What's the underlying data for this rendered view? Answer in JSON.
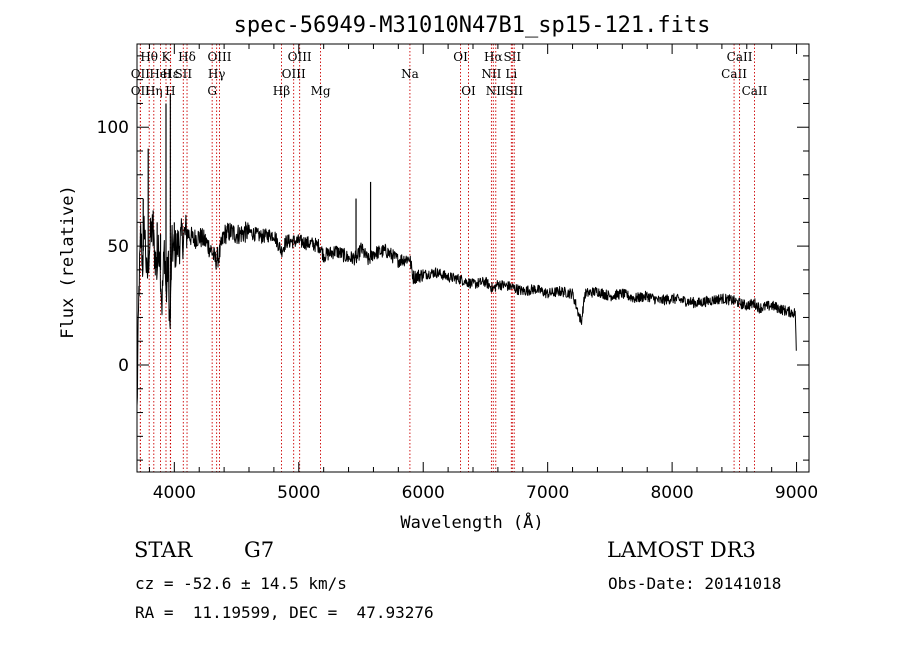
{
  "chart_data": {
    "type": "line",
    "title": "spec-56949-M31010N47B1_sp15-121.fits",
    "xlabel": "Wavelength (Å)",
    "ylabel": "Flux (relative)",
    "xlim": [
      3700,
      9100
    ],
    "ylim": [
      -45,
      135
    ],
    "xticks": [
      {
        "value": 4000,
        "label": "4000"
      },
      {
        "value": 5000,
        "label": "5000"
      },
      {
        "value": 6000,
        "label": "6000"
      },
      {
        "value": 7000,
        "label": "7000"
      },
      {
        "value": 8000,
        "label": "8000"
      },
      {
        "value": 9000,
        "label": "9000"
      }
    ],
    "yticks": [
      {
        "value": 0,
        "label": "0"
      },
      {
        "value": 50,
        "label": "50"
      },
      {
        "value": 100,
        "label": "100"
      }
    ],
    "series": [
      {
        "name": "flux",
        "x": [
          3700,
          3715,
          3730,
          3745,
          3760,
          3780,
          3800,
          3820,
          3840,
          3860,
          3880,
          3900,
          3920,
          3935,
          3950,
          3965,
          3980,
          4000,
          4050,
          4100,
          4150,
          4200,
          4250,
          4300,
          4330,
          4360,
          4400,
          4450,
          4500,
          4600,
          4700,
          4800,
          4860,
          4900,
          5000,
          5100,
          5170,
          5200,
          5300,
          5400,
          5470,
          5500,
          5560,
          5600,
          5700,
          5800,
          5890,
          5920,
          6000,
          6100,
          6200,
          6300,
          6400,
          6500,
          6563,
          6600,
          6700,
          6800,
          6900,
          7000,
          7100,
          7200,
          7270,
          7300,
          7400,
          7500,
          7600,
          7700,
          7800,
          7900,
          8000,
          8100,
          8200,
          8300,
          8400,
          8498,
          8542,
          8600,
          8662,
          8700,
          8800,
          8900,
          8970,
          8990,
          9000
        ],
        "y": [
          -20,
          30,
          55,
          42,
          60,
          35,
          50,
          58,
          48,
          40,
          52,
          25,
          50,
          28,
          45,
          12,
          50,
          48,
          52,
          56,
          53,
          54,
          52,
          48,
          44,
          46,
          55,
          56,
          55,
          56,
          54,
          55,
          48,
          52,
          52,
          51,
          50,
          46,
          48,
          45,
          45,
          49,
          44,
          47,
          48,
          44,
          45,
          37,
          38,
          39,
          37,
          36,
          34,
          35,
          32,
          34,
          33,
          31,
          32,
          30,
          31,
          30,
          18,
          30,
          31,
          29,
          30,
          28,
          29,
          27,
          28,
          27,
          26,
          27,
          28,
          27,
          26,
          25,
          26,
          24,
          25,
          23,
          22,
          22,
          2
        ]
      }
    ],
    "spikes": [
      {
        "x": 3750,
        "y": 70
      },
      {
        "x": 3790,
        "y": 91
      },
      {
        "x": 3830,
        "y": 65
      },
      {
        "x": 3862,
        "y": 60
      },
      {
        "x": 3889,
        "y": 55
      },
      {
        "x": 3933,
        "y": 110
      },
      {
        "x": 3968,
        "y": 114
      },
      {
        "x": 4000,
        "y": 60
      },
      {
        "x": 5460,
        "y": 70
      },
      {
        "x": 5577,
        "y": 77
      }
    ],
    "line_markers": [
      {
        "x": 3727,
        "label": "OII",
        "row": 2
      },
      {
        "x": 3727,
        "label": "OII",
        "row": 3
      },
      {
        "x": 3798,
        "label": "Hθ",
        "row": 1
      },
      {
        "x": 3835,
        "label": "Hη",
        "row": 3
      },
      {
        "x": 3889,
        "label": "HeI",
        "row": 2
      },
      {
        "x": 3933,
        "label": "K",
        "row": 1
      },
      {
        "x": 3968,
        "label": "H",
        "row": 3
      },
      {
        "x": 3970,
        "label": "Hε",
        "row": 2
      },
      {
        "x": 4072,
        "label": "SII",
        "row": 2
      },
      {
        "x": 4102,
        "label": "Hδ",
        "row": 1
      },
      {
        "x": 4304,
        "label": "G",
        "row": 3
      },
      {
        "x": 4340,
        "label": "Hγ",
        "row": 2
      },
      {
        "x": 4363,
        "label": "OIII",
        "row": 1
      },
      {
        "x": 4861,
        "label": "Hβ",
        "row": 3
      },
      {
        "x": 4959,
        "label": "OIII",
        "row": 2
      },
      {
        "x": 5007,
        "label": "OIII",
        "row": 1
      },
      {
        "x": 5175,
        "label": "Mg",
        "row": 3
      },
      {
        "x": 5893,
        "label": "Na",
        "row": 2
      },
      {
        "x": 6300,
        "label": "OI",
        "row": 1
      },
      {
        "x": 6364,
        "label": "OI",
        "row": 3
      },
      {
        "x": 6548,
        "label": "NII",
        "row": 2
      },
      {
        "x": 6563,
        "label": "Hα",
        "row": 1
      },
      {
        "x": 6583,
        "label": "NII",
        "row": 3
      },
      {
        "x": 6708,
        "label": "Li",
        "row": 2
      },
      {
        "x": 6716,
        "label": "SII",
        "row": 1
      },
      {
        "x": 6731,
        "label": "SII",
        "row": 3
      },
      {
        "x": 8498,
        "label": "CaII",
        "row": 2
      },
      {
        "x": 8542,
        "label": "CaII",
        "row": 1
      },
      {
        "x": 8662,
        "label": "CaII",
        "row": 3
      }
    ]
  },
  "info": {
    "class": "STAR",
    "subclass": "G7",
    "survey": "LAMOST DR3",
    "redshift": "cz = -52.6 ± 14.5 km/s",
    "obs_date": "Obs-Date: 20141018",
    "coords": "RA =  11.19599, DEC =  47.93276"
  }
}
